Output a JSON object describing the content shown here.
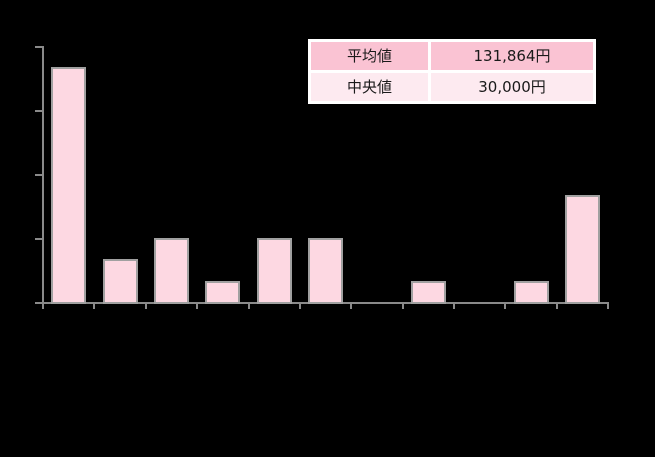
{
  "chart_data": {
    "type": "bar",
    "title": "",
    "categories": [
      "",
      "",
      "",
      "",
      "",
      "",
      "",
      "",
      "",
      "",
      ""
    ],
    "values": [
      11,
      2,
      3,
      1,
      3,
      3,
      0,
      1,
      0,
      1,
      5
    ],
    "xlabel": "",
    "ylabel": "",
    "ylim": [
      0,
      12
    ],
    "y_tick_step": 3,
    "x_tick_count": 12,
    "grid": false,
    "legend": "none",
    "tick_labels_visible": false,
    "background": "#000000",
    "bar_fill": "#fdd8e2",
    "bar_border": "#a0a0a0",
    "axis_color": "#8a8a8a"
  },
  "stats_table": {
    "rows": [
      {
        "label": "平均値",
        "value": "131,864円",
        "bg": "#fac3d3"
      },
      {
        "label": "中央値",
        "value": "30,000円",
        "bg": "#fdeaf0"
      }
    ],
    "border_color": "#ffffff",
    "text_color": "#1a1a1a"
  }
}
